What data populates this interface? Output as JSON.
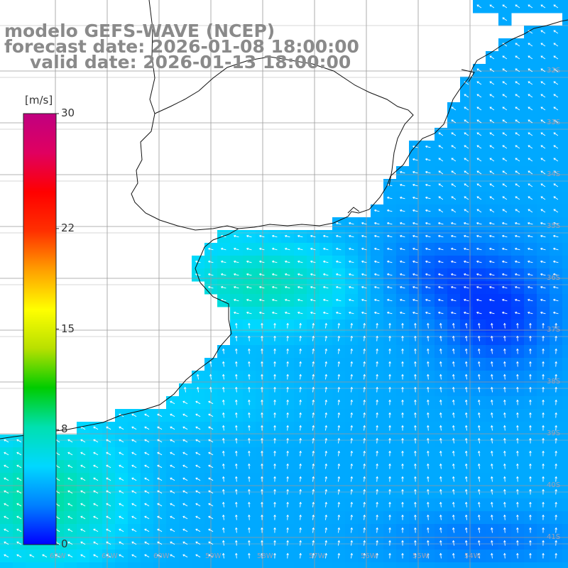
{
  "title": {
    "line1": "modelo GEFS-WAVE (NCEP)",
    "line2": "forecast date: 2026-01-08 18:00:00",
    "line3": "valid date: 2026-01-13 18:00:00"
  },
  "colorbar": {
    "unit_label": "[m/s]",
    "min": 0,
    "max": 30,
    "tick_labels": [
      "30",
      "22",
      "15",
      "8",
      "0"
    ],
    "tick_values": [
      30,
      22,
      15,
      8,
      0
    ],
    "colors": [
      "#0000ff",
      "#0080ff",
      "#00d8ff",
      "#00e0b0",
      "#00cc00",
      "#b8e000",
      "#ffff00",
      "#ffa000",
      "#ff3000",
      "#ff0000",
      "#e00060",
      "#c00080"
    ]
  },
  "map": {
    "lat_labels": [
      {
        "text": "32S",
        "lat": -32
      },
      {
        "text": "33S",
        "lat": -33
      },
      {
        "text": "34S",
        "lat": -34
      },
      {
        "text": "35S",
        "lat": -35
      },
      {
        "text": "36S",
        "lat": -36
      },
      {
        "text": "37S",
        "lat": -37
      },
      {
        "text": "38S",
        "lat": -38
      },
      {
        "text": "39S",
        "lat": -39
      },
      {
        "text": "40S",
        "lat": -40
      },
      {
        "text": "41S",
        "lat": -41
      }
    ],
    "lon_labels": [
      {
        "text": "62W",
        "lon": -62
      },
      {
        "text": "61W",
        "lon": -61
      },
      {
        "text": "60W",
        "lon": -60
      },
      {
        "text": "59W",
        "lon": -59
      },
      {
        "text": "58W",
        "lon": -58
      },
      {
        "text": "57W",
        "lon": -57
      },
      {
        "text": "56W",
        "lon": -56
      },
      {
        "text": "55W",
        "lon": -55
      },
      {
        "text": "54W",
        "lon": -54
      }
    ],
    "variable": "wind speed",
    "grid": true,
    "wind_direction": "mostly from the east / south-east"
  }
}
